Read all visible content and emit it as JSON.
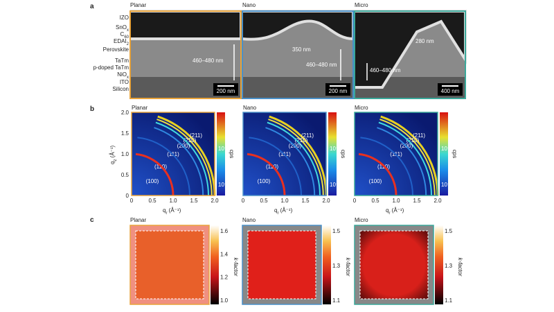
{
  "panel_a": {
    "label": "a",
    "layers": [
      {
        "base": "IZO"
      },
      {
        "base": "SnO",
        "sub": "x"
      },
      {
        "base": "C",
        "sub": "60"
      },
      {
        "base": "EDAI",
        "sub": "2"
      },
      {
        "base": "Perovskite"
      },
      {
        "base": "TaTm"
      },
      {
        "base": "p-doped TaTm"
      },
      {
        "base": "NiO",
        "sub": "x"
      },
      {
        "base": "ITO"
      },
      {
        "base": "Silicon"
      }
    ],
    "columns": [
      {
        "title": "Planar",
        "thickness": "460–480 nm",
        "scale_bar": "200 nm"
      },
      {
        "title": "Nano",
        "dimension": "350 nm",
        "thickness": "460–480 nm",
        "scale_bar": "200 nm"
      },
      {
        "title": "Micro",
        "dimension": "280 nm",
        "thickness": "460–480 nm",
        "scale_bar": "400 nm"
      }
    ]
  },
  "panel_b": {
    "label": "b",
    "titles": [
      "Planar",
      "Nano",
      "Micro"
    ],
    "x_label": {
      "base": "q",
      "sub": "r",
      "unit": " (Å⁻¹)"
    },
    "y_label": {
      "base": "q",
      "sub": "z",
      "unit": " (Å⁻¹)"
    },
    "ticks": [
      0,
      0.5,
      {
        "value": 1,
        "label": "1.0"
      },
      1.5,
      {
        "value": 2,
        "label": "2.0"
      }
    ],
    "rings": [
      "(211)",
      "(210)",
      "(200)",
      "(111)",
      "(110)",
      "(100)"
    ],
    "colorbar_label": "cps",
    "colorbar_ticks": [
      "10⁻¹",
      "10⁻²"
    ]
  },
  "panel_c": {
    "label": "c",
    "colorbar_label": "k-factor",
    "columns": [
      {
        "title": "Planar",
        "colorbar_ticks": [
          {
            "value": 1,
            "label": "1.0"
          },
          1.2,
          1.4,
          1.6
        ]
      },
      {
        "title": "Nano",
        "colorbar_ticks": [
          1.1,
          1.3,
          1.5
        ]
      },
      {
        "title": "Micro",
        "colorbar_ticks": [
          1.1,
          1.3,
          1.5
        ]
      }
    ]
  }
}
